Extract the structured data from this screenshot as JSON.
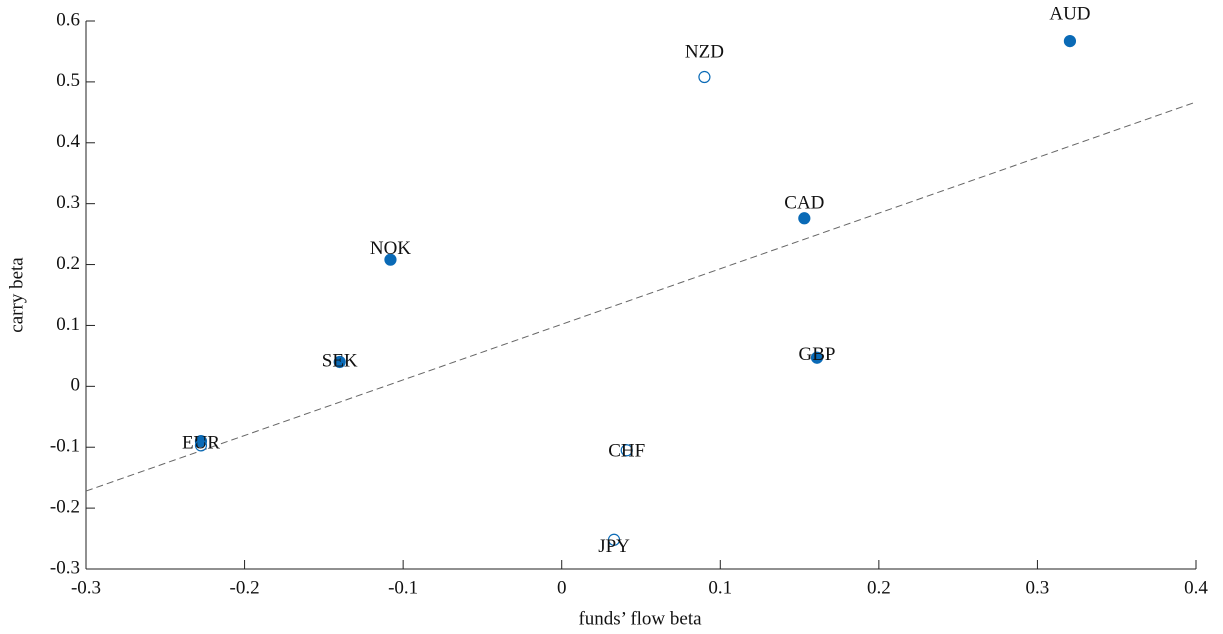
{
  "chart_data": {
    "type": "scatter",
    "xlabel": "funds’ flow beta",
    "ylabel": "carry beta",
    "xlim": [
      -0.3,
      0.4
    ],
    "xticks": [
      -0.3,
      -0.2,
      -0.1,
      0,
      0.1,
      0.2,
      0.3,
      0.4
    ],
    "ylim": [
      -0.3,
      0.6
    ],
    "yticks": [
      -0.3,
      -0.2,
      -0.1,
      0,
      0.1,
      0.2,
      0.3,
      0.4,
      0.5,
      0.6
    ],
    "series": [
      {
        "marker": "filled",
        "color": "#0a6ab6",
        "x": [
          0.3205,
          0.153,
          -0.108,
          -0.14,
          0.161,
          -0.2275
        ],
        "values": [
          0.567,
          0.276,
          0.208,
          0.04,
          0.047,
          -0.09
        ],
        "labels": [
          "AUD",
          "CAD",
          "NOK",
          "SEK",
          "GBP",
          "EUR"
        ]
      },
      {
        "marker": "open",
        "color": "#0a6ab6",
        "x": [
          0.09,
          -0.2275,
          0.041,
          0.033
        ],
        "values": [
          0.508,
          -0.097,
          -0.105,
          -0.252
        ],
        "labels": [
          "NZD",
          null,
          "CHF",
          "JPY"
        ]
      }
    ],
    "fit_line": {
      "color": "#666666",
      "x": [
        -0.3,
        0.4
      ],
      "values": [
        -0.172,
        0.467
      ]
    }
  }
}
